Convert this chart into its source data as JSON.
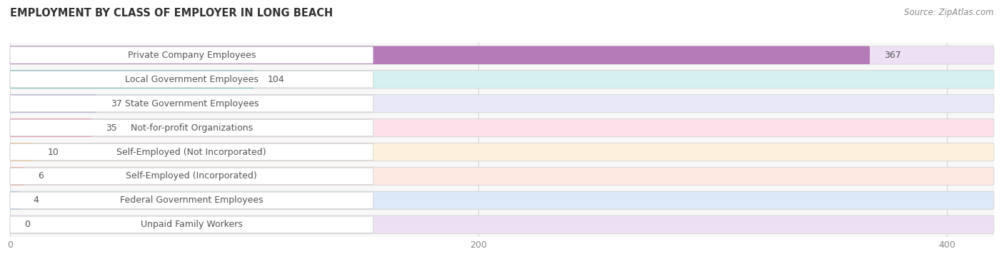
{
  "title": "EMPLOYMENT BY CLASS OF EMPLOYER IN LONG BEACH",
  "source": "Source: ZipAtlas.com",
  "categories": [
    "Private Company Employees",
    "Local Government Employees",
    "State Government Employees",
    "Not-for-profit Organizations",
    "Self-Employed (Not Incorporated)",
    "Self-Employed (Incorporated)",
    "Federal Government Employees",
    "Unpaid Family Workers"
  ],
  "values": [
    367,
    104,
    37,
    35,
    10,
    6,
    4,
    0
  ],
  "bar_colors": [
    "#b57ab8",
    "#5bbfbc",
    "#a8a8d8",
    "#f28aaa",
    "#f5c98a",
    "#f0a898",
    "#a8c0e8",
    "#c0aed0"
  ],
  "bar_bg_colors": [
    "#ede0f5",
    "#d5f0f0",
    "#e8e8f8",
    "#fce0ea",
    "#fdf0dc",
    "#fde8e2",
    "#dde8f8",
    "#ede0f5"
  ],
  "label_box_color": "#ffffff",
  "label_text_color": "#555555",
  "value_text_color": "#555555",
  "xlim": [
    0,
    420
  ],
  "xticks": [
    0,
    200,
    400
  ],
  "title_fontsize": 10.5,
  "bar_label_fontsize": 9,
  "category_fontsize": 9,
  "source_fontsize": 8.5
}
